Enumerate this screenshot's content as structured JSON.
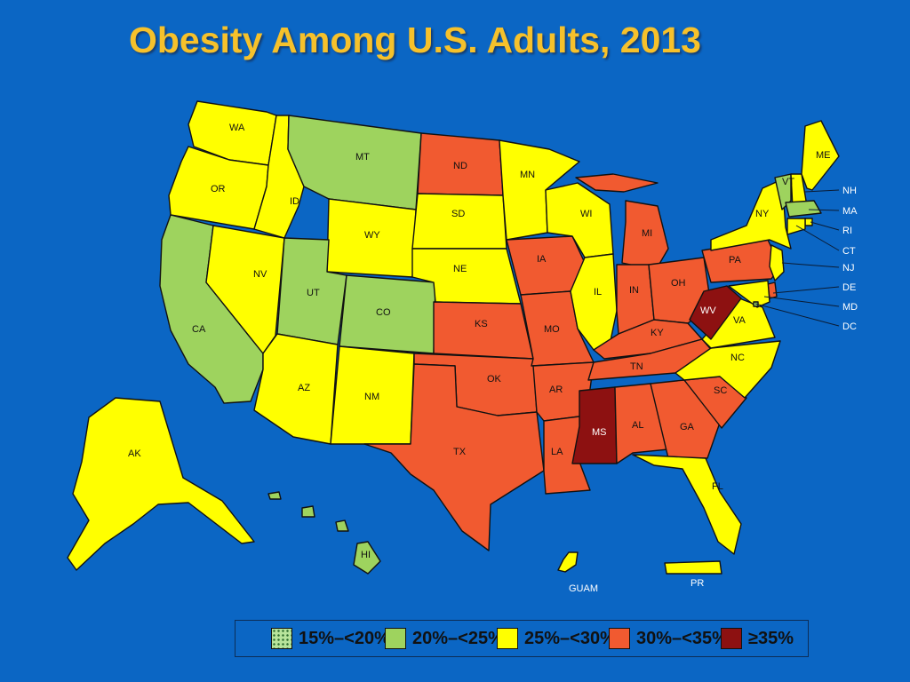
{
  "title": "Obesity Among U.S. Adults, 2013",
  "colors": {
    "background": "#0b66c4",
    "title": "#f6c12b",
    "cat15_20": "#b7e49b",
    "cat20_25": "#9ed35e",
    "cat25_30": "#ffff00",
    "cat30_35": "#f15a30",
    "cat35plus": "#8d1111"
  },
  "legend": [
    {
      "key": "15_20",
      "label": "15%–<20%"
    },
    {
      "key": "20_25",
      "label": "20%–<25%"
    },
    {
      "key": "25_30",
      "label": "25%–<30%"
    },
    {
      "key": "30_35",
      "label": "30%–<35%"
    },
    {
      "key": "35plus",
      "label": "≥35%"
    }
  ],
  "states": [
    {
      "code": "WA",
      "category": "25_30"
    },
    {
      "code": "OR",
      "category": "25_30"
    },
    {
      "code": "CA",
      "category": "20_25"
    },
    {
      "code": "NV",
      "category": "25_30"
    },
    {
      "code": "ID",
      "category": "25_30"
    },
    {
      "code": "MT",
      "category": "20_25"
    },
    {
      "code": "WY",
      "category": "25_30"
    },
    {
      "code": "UT",
      "category": "20_25"
    },
    {
      "code": "CO",
      "category": "20_25"
    },
    {
      "code": "AZ",
      "category": "25_30"
    },
    {
      "code": "NM",
      "category": "25_30"
    },
    {
      "code": "ND",
      "category": "30_35"
    },
    {
      "code": "SD",
      "category": "25_30"
    },
    {
      "code": "NE",
      "category": "25_30"
    },
    {
      "code": "KS",
      "category": "30_35"
    },
    {
      "code": "OK",
      "category": "30_35"
    },
    {
      "code": "TX",
      "category": "30_35"
    },
    {
      "code": "MN",
      "category": "25_30"
    },
    {
      "code": "IA",
      "category": "30_35"
    },
    {
      "code": "MO",
      "category": "30_35"
    },
    {
      "code": "AR",
      "category": "30_35"
    },
    {
      "code": "LA",
      "category": "30_35"
    },
    {
      "code": "WI",
      "category": "25_30"
    },
    {
      "code": "IL",
      "category": "25_30"
    },
    {
      "code": "MI",
      "category": "30_35"
    },
    {
      "code": "IN",
      "category": "30_35"
    },
    {
      "code": "OH",
      "category": "30_35"
    },
    {
      "code": "KY",
      "category": "30_35"
    },
    {
      "code": "TN",
      "category": "30_35"
    },
    {
      "code": "MS",
      "category": "35plus"
    },
    {
      "code": "AL",
      "category": "30_35"
    },
    {
      "code": "GA",
      "category": "30_35"
    },
    {
      "code": "FL",
      "category": "25_30"
    },
    {
      "code": "SC",
      "category": "30_35"
    },
    {
      "code": "NC",
      "category": "25_30"
    },
    {
      "code": "VA",
      "category": "25_30"
    },
    {
      "code": "WV",
      "category": "35plus"
    },
    {
      "code": "PA",
      "category": "30_35"
    },
    {
      "code": "NY",
      "category": "25_30"
    },
    {
      "code": "VT",
      "category": "20_25"
    },
    {
      "code": "NH",
      "category": "25_30"
    },
    {
      "code": "ME",
      "category": "25_30"
    },
    {
      "code": "MA",
      "category": "20_25"
    },
    {
      "code": "RI",
      "category": "25_30"
    },
    {
      "code": "CT",
      "category": "25_30"
    },
    {
      "code": "NJ",
      "category": "25_30"
    },
    {
      "code": "DE",
      "category": "30_35"
    },
    {
      "code": "MD",
      "category": "25_30"
    },
    {
      "code": "DC",
      "category": "20_25"
    },
    {
      "code": "AK",
      "category": "25_30"
    },
    {
      "code": "HI",
      "category": "20_25"
    },
    {
      "code": "GUAM",
      "category": "25_30"
    },
    {
      "code": "PR",
      "category": "25_30"
    }
  ]
}
